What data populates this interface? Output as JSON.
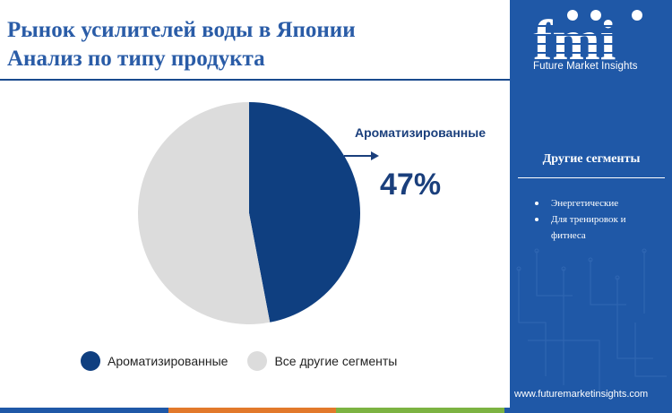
{
  "title": {
    "line1": "Рынок усилителей воды в Японии",
    "line2": "Анализ по типу продукта"
  },
  "brand": {
    "logo_text": "fmi",
    "name": "Future Market Insights",
    "website": "www.futuremarketinsights.com"
  },
  "sidebar": {
    "segments_title": "Другие сегменты",
    "segments": [
      "Энергетические",
      "Для тренировок и фитнеса"
    ]
  },
  "colors": {
    "title": "#2a5ca7",
    "sidebar_bg": "#1f58a7",
    "flavored": "#0f3f80",
    "others": "#dcdcdc",
    "bottom_bar": [
      "#1f58a7",
      "#e2792b",
      "#7cb342",
      "#1f58a7"
    ]
  },
  "chart_data": {
    "type": "pie",
    "slices": [
      {
        "label": "Ароматизированные",
        "value": 47,
        "color": "#0f3f80"
      },
      {
        "label": "Все другие сегменты",
        "value": 53,
        "color": "#dcdcdc"
      }
    ],
    "start_angle_deg": 0,
    "direction": "clockwise",
    "callout": {
      "label": "Ароматизированные",
      "value_text": "47%"
    },
    "legend": {
      "placement": "bottom",
      "items": [
        {
          "label": "Ароматизированные",
          "color": "#0f3f80"
        },
        {
          "label": "Все другие сегменты",
          "color": "#dcdcdc"
        }
      ]
    }
  }
}
